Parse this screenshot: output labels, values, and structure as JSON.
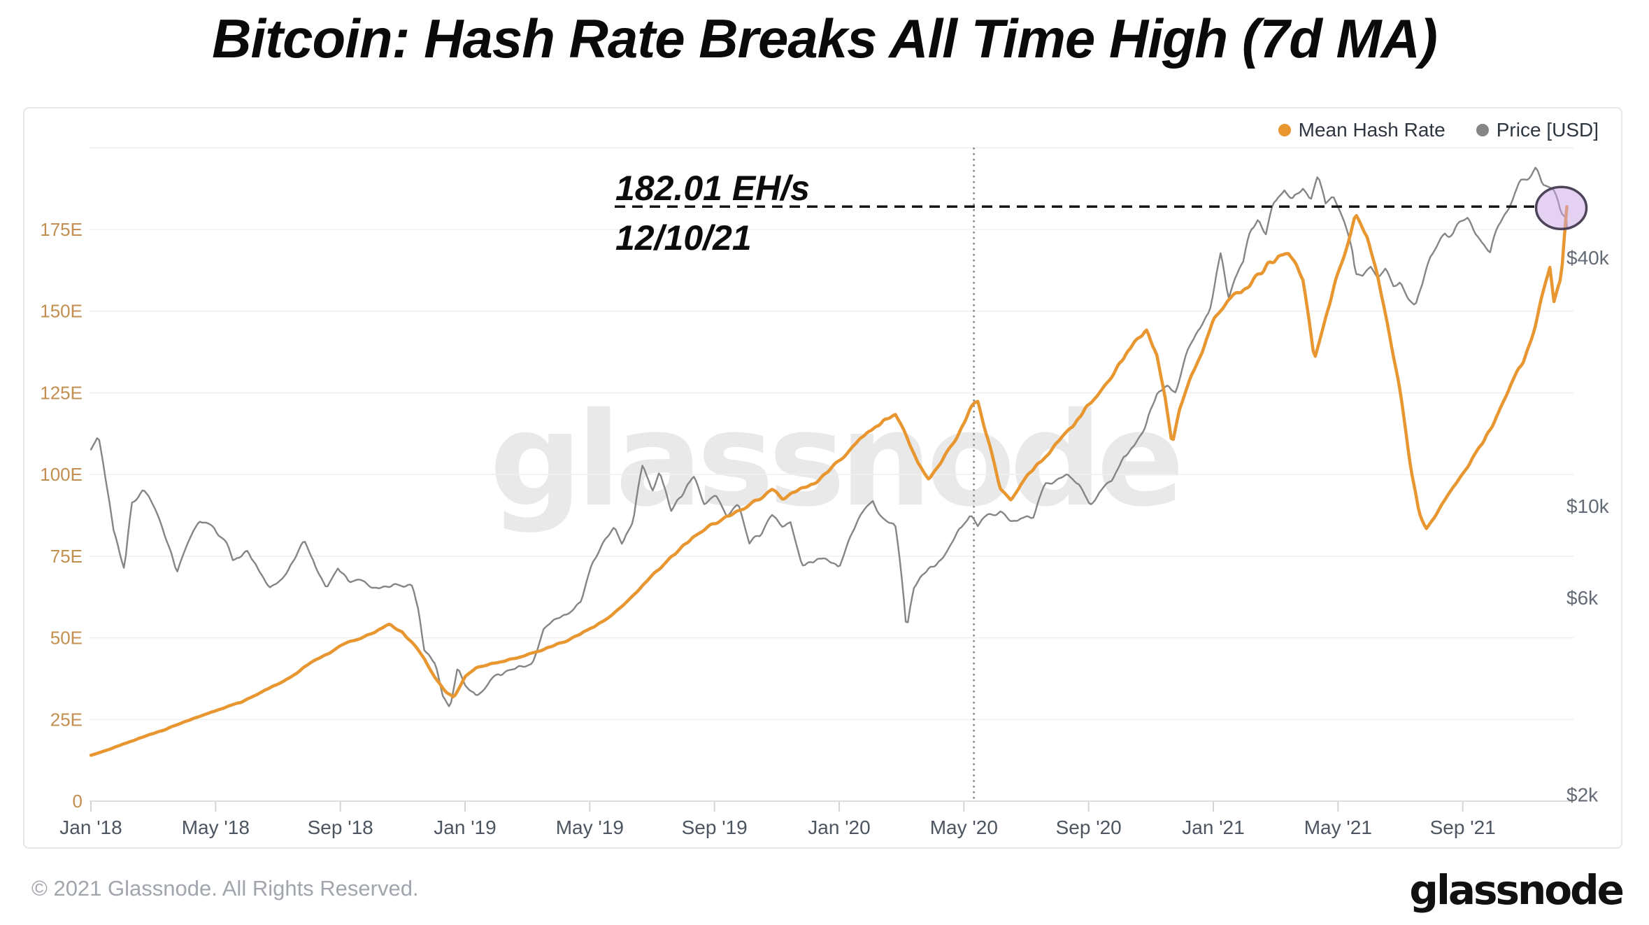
{
  "header": {
    "title": "Bitcoin: Hash Rate Breaks All Time High (7d MA)"
  },
  "legend": [
    {
      "label": "Mean Hash Rate",
      "color": "#E8962F"
    },
    {
      "label": "Price [USD]",
      "color": "#858585"
    }
  ],
  "annotation": {
    "line1": "182.01 EH/s",
    "line2": "12/10/21"
  },
  "watermark": "glassnode",
  "footer": {
    "copyright": "© 2021 Glassnode. All Rights Reserved.",
    "logo": "glassnode"
  },
  "chart_data": {
    "type": "line",
    "title": "Bitcoin: Hash Rate Breaks All Time High (7d MA)",
    "grid": true,
    "legend_position": "top-right",
    "x_axis": {
      "ticks": [
        "Jan '18",
        "May '18",
        "Sep '18",
        "Jan '19",
        "May '19",
        "Sep '19",
        "Jan '20",
        "May '20",
        "Sep '20",
        "Jan '21",
        "May '21",
        "Sep '21"
      ],
      "tick_positions": [
        2018.0,
        2018.3333,
        2018.6667,
        2019.0,
        2019.3333,
        2019.6667,
        2020.0,
        2020.3333,
        2020.6667,
        2021.0,
        2021.3333,
        2021.6667
      ],
      "range": [
        2018.0,
        2021.945
      ]
    },
    "y_left": {
      "name": "Mean Hash Rate",
      "unit": "EH/s",
      "scale": "linear",
      "range": [
        0,
        200
      ],
      "ticks": [
        0,
        25,
        50,
        75,
        100,
        125,
        150,
        175
      ],
      "tick_labels": [
        "0",
        "25E",
        "50E",
        "75E",
        "100E",
        "125E",
        "150E",
        "175E"
      ],
      "color": "#c28f50"
    },
    "y_right": {
      "name": "Price",
      "unit": "USD",
      "scale": "log",
      "ticks": [
        2000,
        6000,
        10000,
        40000
      ],
      "tick_labels": [
        "$2k",
        "$6k",
        "$10k",
        "$40k"
      ],
      "color": "#636b77"
    },
    "ath_line": {
      "value": 182.01,
      "date": "12/10/21",
      "x_start": 2019.4,
      "style": "dashed"
    },
    "vline_dotted": {
      "x": 2020.36
    },
    "highlight_ellipse": {
      "x": 2021.93,
      "value": 182.01,
      "fill": "#CBA3E6",
      "stroke": "#4C4458"
    },
    "series": [
      {
        "name": "Price [USD]",
        "axis": "right",
        "color": "#858585",
        "width": 2.4,
        "points": [
          [
            2018.0,
            13800
          ],
          [
            2018.02,
            15000
          ],
          [
            2018.04,
            11600
          ],
          [
            2018.06,
            8700
          ],
          [
            2018.09,
            7000
          ],
          [
            2018.11,
            10300
          ],
          [
            2018.14,
            11000
          ],
          [
            2018.17,
            9800
          ],
          [
            2018.2,
            8300
          ],
          [
            2018.23,
            7000
          ],
          [
            2018.26,
            8200
          ],
          [
            2018.29,
            9300
          ],
          [
            2018.33,
            9000
          ],
          [
            2018.36,
            8400
          ],
          [
            2018.38,
            7500
          ],
          [
            2018.42,
            7600
          ],
          [
            2018.45,
            6700
          ],
          [
            2018.48,
            6200
          ],
          [
            2018.51,
            6600
          ],
          [
            2018.54,
            7400
          ],
          [
            2018.57,
            8200
          ],
          [
            2018.6,
            7000
          ],
          [
            2018.63,
            6300
          ],
          [
            2018.66,
            7100
          ],
          [
            2018.69,
            6500
          ],
          [
            2018.72,
            6600
          ],
          [
            2018.75,
            6500
          ],
          [
            2018.78,
            6450
          ],
          [
            2018.81,
            6400
          ],
          [
            2018.84,
            6350
          ],
          [
            2018.86,
            6400
          ],
          [
            2018.875,
            5600
          ],
          [
            2018.89,
            4500
          ],
          [
            2018.92,
            4000
          ],
          [
            2018.94,
            3400
          ],
          [
            2018.96,
            3250
          ],
          [
            2018.98,
            4100
          ],
          [
            2019.0,
            3750
          ],
          [
            2019.03,
            3480
          ],
          [
            2019.06,
            3650
          ],
          [
            2019.09,
            3900
          ],
          [
            2019.12,
            3920
          ],
          [
            2019.15,
            4000
          ],
          [
            2019.18,
            4120
          ],
          [
            2019.21,
            5080
          ],
          [
            2019.24,
            5280
          ],
          [
            2019.27,
            5500
          ],
          [
            2019.31,
            6000
          ],
          [
            2019.34,
            7200
          ],
          [
            2019.37,
            8000
          ],
          [
            2019.4,
            8700
          ],
          [
            2019.42,
            7900
          ],
          [
            2019.45,
            9100
          ],
          [
            2019.475,
            12800
          ],
          [
            2019.5,
            11000
          ],
          [
            2019.52,
            12300
          ],
          [
            2019.55,
            9800
          ],
          [
            2019.58,
            10600
          ],
          [
            2019.61,
            11900
          ],
          [
            2019.64,
            10300
          ],
          [
            2019.67,
            10800
          ],
          [
            2019.7,
            9600
          ],
          [
            2019.73,
            10300
          ],
          [
            2019.76,
            8200
          ],
          [
            2019.79,
            8350
          ],
          [
            2019.82,
            9300
          ],
          [
            2019.85,
            8650
          ],
          [
            2019.87,
            9150
          ],
          [
            2019.9,
            7300
          ],
          [
            2019.93,
            7200
          ],
          [
            2019.96,
            7500
          ],
          [
            2020.0,
            7200
          ],
          [
            2020.03,
            8350
          ],
          [
            2020.06,
            9350
          ],
          [
            2020.09,
            10150
          ],
          [
            2020.12,
            9200
          ],
          [
            2020.15,
            8800
          ],
          [
            2020.18,
            4950
          ],
          [
            2020.2,
            6250
          ],
          [
            2020.23,
            6800
          ],
          [
            2020.26,
            7100
          ],
          [
            2020.29,
            7650
          ],
          [
            2020.32,
            8800
          ],
          [
            2020.35,
            9500
          ],
          [
            2020.37,
            8750
          ],
          [
            2020.4,
            9400
          ],
          [
            2020.43,
            9700
          ],
          [
            2020.46,
            9300
          ],
          [
            2020.49,
            9120
          ],
          [
            2020.52,
            9250
          ],
          [
            2020.55,
            11000
          ],
          [
            2020.58,
            11350
          ],
          [
            2020.61,
            11800
          ],
          [
            2020.64,
            11500
          ],
          [
            2020.67,
            10300
          ],
          [
            2020.7,
            10750
          ],
          [
            2020.73,
            11400
          ],
          [
            2020.76,
            13050
          ],
          [
            2020.79,
            13800
          ],
          [
            2020.82,
            15500
          ],
          [
            2020.85,
            18400
          ],
          [
            2020.88,
            19200
          ],
          [
            2020.9,
            18300
          ],
          [
            2020.93,
            23000
          ],
          [
            2020.96,
            26500
          ],
          [
            2020.99,
            29000
          ],
          [
            2021.0,
            32200
          ],
          [
            2021.02,
            40600
          ],
          [
            2021.04,
            31500
          ],
          [
            2021.06,
            36000
          ],
          [
            2021.08,
            38500
          ],
          [
            2021.1,
            46500
          ],
          [
            2021.12,
            49000
          ],
          [
            2021.14,
            45000
          ],
          [
            2021.16,
            54000
          ],
          [
            2021.19,
            58000
          ],
          [
            2021.21,
            54500
          ],
          [
            2021.24,
            59200
          ],
          [
            2021.26,
            55000
          ],
          [
            2021.28,
            63200
          ],
          [
            2021.3,
            54000
          ],
          [
            2021.32,
            56800
          ],
          [
            2021.35,
            49000
          ],
          [
            2021.37,
            43000
          ],
          [
            2021.38,
            37000
          ],
          [
            2021.4,
            36500
          ],
          [
            2021.42,
            38800
          ],
          [
            2021.44,
            35500
          ],
          [
            2021.46,
            36800
          ],
          [
            2021.48,
            33500
          ],
          [
            2021.5,
            34300
          ],
          [
            2021.52,
            31600
          ],
          [
            2021.54,
            29900
          ],
          [
            2021.56,
            33800
          ],
          [
            2021.58,
            39500
          ],
          [
            2021.6,
            42200
          ],
          [
            2021.62,
            46000
          ],
          [
            2021.64,
            44600
          ],
          [
            2021.66,
            47200
          ],
          [
            2021.68,
            48900
          ],
          [
            2021.7,
            46000
          ],
          [
            2021.72,
            43800
          ],
          [
            2021.74,
            41500
          ],
          [
            2021.76,
            47500
          ],
          [
            2021.78,
            51000
          ],
          [
            2021.8,
            55000
          ],
          [
            2021.82,
            61700
          ],
          [
            2021.84,
            63000
          ],
          [
            2021.86,
            66900
          ],
          [
            2021.87,
            64500
          ],
          [
            2021.88,
            60500
          ],
          [
            2021.9,
            58000
          ],
          [
            2021.91,
            56600
          ],
          [
            2021.92,
            53800
          ],
          [
            2021.93,
            49500
          ],
          [
            2021.945,
            47300
          ]
        ]
      },
      {
        "name": "Mean Hash Rate",
        "axis": "left",
        "color": "#E8962F",
        "width": 4.5,
        "points": [
          [
            2018.0,
            14.2
          ],
          [
            2018.05,
            16
          ],
          [
            2018.1,
            18
          ],
          [
            2018.15,
            20
          ],
          [
            2018.2,
            22
          ],
          [
            2018.25,
            24.5
          ],
          [
            2018.3,
            26.5
          ],
          [
            2018.35,
            28.5
          ],
          [
            2018.4,
            30
          ],
          [
            2018.45,
            33
          ],
          [
            2018.5,
            36
          ],
          [
            2018.55,
            39
          ],
          [
            2018.6,
            43
          ],
          [
            2018.64,
            45.5
          ],
          [
            2018.68,
            48
          ],
          [
            2018.72,
            50
          ],
          [
            2018.76,
            52
          ],
          [
            2018.8,
            54
          ],
          [
            2018.83,
            52
          ],
          [
            2018.86,
            48.5
          ],
          [
            2018.89,
            44
          ],
          [
            2018.92,
            38
          ],
          [
            2018.95,
            33.5
          ],
          [
            2018.97,
            31.8
          ],
          [
            2019.0,
            38
          ],
          [
            2019.03,
            41
          ],
          [
            2019.07,
            42.5
          ],
          [
            2019.11,
            43.5
          ],
          [
            2019.15,
            44.5
          ],
          [
            2019.19,
            45.5
          ],
          [
            2019.23,
            47
          ],
          [
            2019.27,
            49
          ],
          [
            2019.31,
            51.5
          ],
          [
            2019.35,
            54
          ],
          [
            2019.4,
            58
          ],
          [
            2019.45,
            63
          ],
          [
            2019.5,
            69
          ],
          [
            2019.55,
            75
          ],
          [
            2019.6,
            80
          ],
          [
            2019.65,
            84
          ],
          [
            2019.7,
            87
          ],
          [
            2019.75,
            90
          ],
          [
            2019.79,
            93
          ],
          [
            2019.82,
            95.5
          ],
          [
            2019.85,
            92
          ],
          [
            2019.89,
            96
          ],
          [
            2019.93,
            98
          ],
          [
            2019.97,
            101
          ],
          [
            2020.0,
            104
          ],
          [
            2020.04,
            109
          ],
          [
            2020.08,
            113
          ],
          [
            2020.12,
            117
          ],
          [
            2020.15,
            119.5
          ],
          [
            2020.18,
            112
          ],
          [
            2020.21,
            103
          ],
          [
            2020.24,
            98.5
          ],
          [
            2020.28,
            106
          ],
          [
            2020.32,
            112
          ],
          [
            2020.35,
            119
          ],
          [
            2020.37,
            121.5
          ],
          [
            2020.4,
            110
          ],
          [
            2020.43,
            96
          ],
          [
            2020.46,
            91.5
          ],
          [
            2020.5,
            99
          ],
          [
            2020.54,
            104
          ],
          [
            2020.58,
            110
          ],
          [
            2020.62,
            116
          ],
          [
            2020.66,
            121
          ],
          [
            2020.7,
            126
          ],
          [
            2020.74,
            132
          ],
          [
            2020.78,
            138
          ],
          [
            2020.82,
            143.5
          ],
          [
            2020.85,
            136
          ],
          [
            2020.87,
            124
          ],
          [
            2020.89,
            109
          ],
          [
            2020.91,
            120
          ],
          [
            2020.94,
            130
          ],
          [
            2020.97,
            137
          ],
          [
            2021.0,
            146
          ],
          [
            2021.04,
            152
          ],
          [
            2021.08,
            157
          ],
          [
            2021.12,
            161
          ],
          [
            2021.16,
            165.5
          ],
          [
            2021.2,
            168
          ],
          [
            2021.24,
            160
          ],
          [
            2021.27,
            136
          ],
          [
            2021.3,
            148
          ],
          [
            2021.33,
            160
          ],
          [
            2021.36,
            172
          ],
          [
            2021.38,
            179.5
          ],
          [
            2021.41,
            172
          ],
          [
            2021.44,
            160
          ],
          [
            2021.47,
            143
          ],
          [
            2021.5,
            125
          ],
          [
            2021.53,
            100
          ],
          [
            2021.55,
            88
          ],
          [
            2021.57,
            83.5
          ],
          [
            2021.6,
            89
          ],
          [
            2021.64,
            96
          ],
          [
            2021.68,
            103
          ],
          [
            2021.72,
            110
          ],
          [
            2021.76,
            118
          ],
          [
            2021.8,
            128
          ],
          [
            2021.83,
            136
          ],
          [
            2021.86,
            146
          ],
          [
            2021.88,
            155
          ],
          [
            2021.9,
            163
          ],
          [
            2021.91,
            152
          ],
          [
            2021.93,
            160
          ],
          [
            2021.945,
            182.01
          ]
        ]
      }
    ]
  }
}
